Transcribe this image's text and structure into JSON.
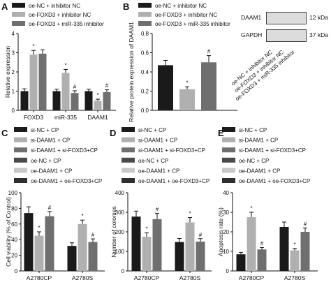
{
  "chart_data": [
    {
      "panel": "A",
      "type": "bar",
      "categories": [
        "FOXD3",
        "miR-335",
        "DAAM1"
      ],
      "series": [
        {
          "name": "oe-NC + inhibitor NC",
          "values": [
            1.0,
            1.0,
            1.0
          ],
          "errors": [
            0.12,
            0.1,
            0.1
          ],
          "color": "#1a1a1a"
        },
        {
          "name": "oe-FOXD3 + inhibitor NC",
          "values": [
            2.9,
            1.95,
            0.5
          ],
          "errors": [
            0.22,
            0.18,
            0.08
          ],
          "color": "#b0b0b0"
        },
        {
          "name": "oe-FOXD3 + miR-335 inhibitor",
          "values": [
            2.95,
            0.9,
            0.95
          ],
          "errors": [
            0.2,
            0.12,
            0.12
          ],
          "color": "#6f6f6f"
        }
      ],
      "annotations": [
        {
          "category": "FOXD3",
          "series": 1,
          "text": "*"
        },
        {
          "category": "miR-335",
          "series": 1,
          "text": "*"
        },
        {
          "category": "miR-335",
          "series": 2,
          "text": "#"
        },
        {
          "category": "DAAM1",
          "series": 1,
          "text": "*"
        },
        {
          "category": "DAAM1",
          "series": 2,
          "text": "#"
        }
      ],
      "ylabel": "Relative expression",
      "ylim": [
        0,
        4
      ],
      "yticks": [
        "0",
        "1",
        "2",
        "3",
        "4"
      ],
      "legend": "top"
    },
    {
      "panel": "B",
      "type": "bar",
      "categories": [
        "oe-NC + inhibitor NC",
        "oe-FOXD3 + inhibitor NC",
        "oe-FOXD3 + miR-335 inhibitor"
      ],
      "values": [
        0.47,
        0.22,
        0.5
      ],
      "errors": [
        0.05,
        0.025,
        0.07
      ],
      "colors": [
        "#1a1a1a",
        "#b0b0b0",
        "#6f6f6f"
      ],
      "annotations": [
        {
          "category": "oe-FOXD3 + inhibitor NC",
          "text": "*"
        },
        {
          "category": "oe-FOXD3 + miR-335 inhibitor",
          "text": "#"
        }
      ],
      "ylabel": "Relative protein expression of DAAM1",
      "ylim": [
        0,
        0.8
      ],
      "yticks": [
        "0.0",
        "0.2",
        "0.4",
        "0.6",
        "0.8"
      ],
      "legend": "top"
    },
    {
      "panel": "C",
      "type": "bar",
      "categories": [
        "A2780CP",
        "A2780S"
      ],
      "series": [
        {
          "name": "si-NC + CP",
          "values": [
            74,
            32
          ],
          "errors": [
            8,
            4
          ],
          "color": "#1a1a1a"
        },
        {
          "name": "si-DAAM1 + CP",
          "values": [
            45,
            60
          ],
          "errors": [
            5,
            5
          ],
          "color": "#b0b0b0"
        },
        {
          "name": "si-DAAM1 + si-FOXD3+CP",
          "values": [
            70,
            37
          ],
          "errors": [
            6,
            4
          ],
          "color": "#6f6f6f"
        }
      ],
      "annotations": [
        {
          "category": "A2780CP",
          "series": 1,
          "text": "*"
        },
        {
          "category": "A2780CP",
          "series": 2,
          "text": "#"
        },
        {
          "category": "A2780S",
          "series": 1,
          "text": "*"
        },
        {
          "category": "A2780S",
          "series": 2,
          "text": "#"
        }
      ],
      "ylabel": "Cell viability (% of Control)",
      "ylim": [
        0,
        100
      ],
      "yticks": [
        "0",
        "20",
        "40",
        "60",
        "80",
        "100"
      ],
      "legend": "top"
    },
    {
      "panel": "D",
      "type": "bar",
      "categories": [
        "A2780CP",
        "A2780S"
      ],
      "series": [
        {
          "name": "si-NC + CP",
          "values": [
            278,
            148
          ],
          "errors": [
            28,
            18
          ],
          "color": "#1a1a1a"
        },
        {
          "name": "si-DAAM1 + CP",
          "values": [
            175,
            248
          ],
          "errors": [
            20,
            25
          ],
          "color": "#b0b0b0"
        },
        {
          "name": "si-DAAM1 + si-FOXD3+CP",
          "values": [
            265,
            150
          ],
          "errors": [
            30,
            15
          ],
          "color": "#6f6f6f"
        }
      ],
      "annotations": [
        {
          "category": "A2780CP",
          "series": 1,
          "text": "*"
        },
        {
          "category": "A2780CP",
          "series": 2,
          "text": "#"
        },
        {
          "category": "A2780S",
          "series": 1,
          "text": "*"
        },
        {
          "category": "A2780S",
          "series": 2,
          "text": "#"
        }
      ],
      "ylabel": "Number of colonies",
      "ylim": [
        0,
        400
      ],
      "yticks": [
        "0",
        "100",
        "200",
        "300",
        "400"
      ],
      "legend": "top"
    },
    {
      "panel": "E",
      "type": "bar",
      "categories": [
        "A2780CP",
        "A2780S"
      ],
      "series": [
        {
          "name": "si-NC + CP",
          "values": [
            8.5,
            22.5
          ],
          "errors": [
            1,
            2.5
          ],
          "color": "#1a1a1a"
        },
        {
          "name": "si-DAAM1 + CP",
          "values": [
            27.5,
            10.5
          ],
          "errors": [
            2.5,
            1
          ],
          "color": "#b0b0b0"
        },
        {
          "name": "si-DAAM1 + si-FOXD3+CP",
          "values": [
            11,
            20
          ],
          "errors": [
            1,
            2
          ],
          "color": "#6f6f6f"
        }
      ],
      "annotations": [
        {
          "category": "A2780CP",
          "series": 1,
          "text": "*"
        },
        {
          "category": "A2780CP",
          "series": 2,
          "text": "#"
        },
        {
          "category": "A2780S",
          "series": 1,
          "text": "*"
        },
        {
          "category": "A2780S",
          "series": 2,
          "text": "#"
        }
      ],
      "ylabel": "Apoptosis rate (%)",
      "ylim": [
        0,
        40
      ],
      "yticks": [
        "0",
        "10",
        "20",
        "30",
        "40"
      ],
      "legend": "top"
    }
  ],
  "extra_legend_cde": [
    {
      "name": "oe-NC + CP",
      "color": "#4a4a4a"
    },
    {
      "name": "oe-DAAM1 + CP",
      "color": "#c8c8c8"
    },
    {
      "name": "oe-DAAM1 + oe-FOXD3+CP",
      "color": "#2e2e2e"
    }
  ],
  "panel_letters": [
    "A",
    "B",
    "C",
    "D",
    "E"
  ],
  "blot": {
    "rows": [
      {
        "protein": "DAAM1",
        "size": "12 kDa"
      },
      {
        "protein": "GAPDH",
        "size": "37 kDa"
      }
    ],
    "lanes": [
      "oe-NC + inhibitor NC",
      "oe-FOXD3 + inhibitor NC",
      "oe-FOXD3 + miR-335 inhibitor"
    ]
  }
}
